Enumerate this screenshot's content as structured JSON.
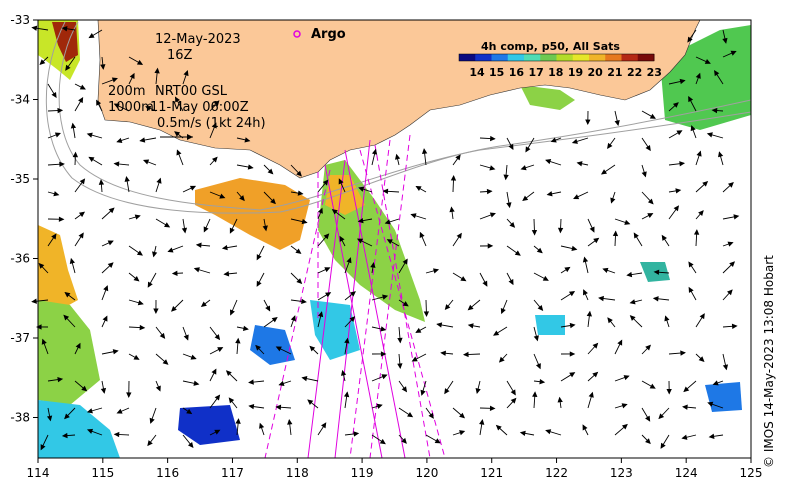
{
  "header": {
    "date": "12-May-2023",
    "time": "16Z",
    "depth_line1": "200m",
    "model_line1": "NRT00 GSL",
    "depth_line2": "1000m",
    "model_line2": "11-May 06:00Z",
    "vector_scale": "0.5m/s (1kt 24h)"
  },
  "legend": {
    "argo_label": "Argo",
    "argo_color": "#e000e0",
    "colorbar_title": "4h comp, p50, All Sats",
    "colorbar_ticks": [
      "14",
      "15",
      "16",
      "17",
      "18",
      "19",
      "20",
      "21",
      "22",
      "23"
    ],
    "colorbar_colors": [
      "#0a0a80",
      "#1030c8",
      "#1e78e6",
      "#32c8e6",
      "#50dcb4",
      "#6ec850",
      "#b4dc28",
      "#e6e628",
      "#f0b428",
      "#e6781e",
      "#b42814",
      "#780a0a"
    ]
  },
  "axes": {
    "x_ticks": [
      "114",
      "115",
      "116",
      "117",
      "118",
      "119",
      "120",
      "121",
      "122",
      "123",
      "124",
      "125"
    ],
    "y_ticks": [
      "-33",
      "-34",
      "-35",
      "-36",
      "-37",
      "-38"
    ]
  },
  "colors": {
    "land": "#fbc898",
    "ocean": "#ffffff",
    "track": "#e000e0",
    "contour": "#a0a0a0"
  },
  "credit": "© IMOS 14-May-2023 13:08 Hobart"
}
